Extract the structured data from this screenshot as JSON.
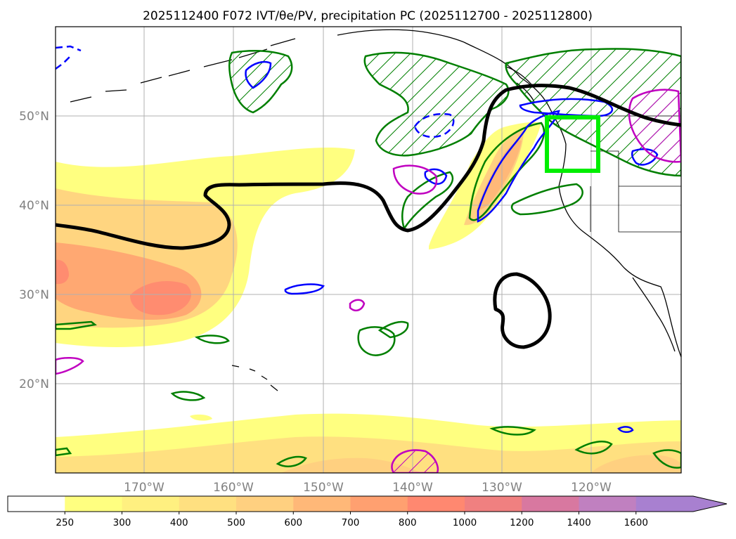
{
  "title": "2025112400 F072 IVT/θe/PV, precipitation PC (2025112700 - 2025112800)",
  "map": {
    "lon_range": [
      -180,
      -110
    ],
    "lat_range": [
      10,
      60
    ],
    "lon_ticks": [
      {
        "value": -170,
        "label": "170°W"
      },
      {
        "value": -160,
        "label": "160°W"
      },
      {
        "value": -150,
        "label": "150°W"
      },
      {
        "value": -140,
        "label": "140°W"
      },
      {
        "value": -130,
        "label": "130°W"
      },
      {
        "value": -120,
        "label": "120°W"
      }
    ],
    "lat_ticks": [
      {
        "value": 20,
        "label": "20°N"
      },
      {
        "value": 30,
        "label": "30°N"
      },
      {
        "value": 40,
        "label": "40°N"
      },
      {
        "value": 50,
        "label": "50°N"
      }
    ],
    "gridlines": true,
    "highlight_box": {
      "lon": [
        -125,
        -119
      ],
      "lat": [
        43.5,
        49.5
      ],
      "color": "#00ee00"
    }
  },
  "colorbar": {
    "levels": [
      "250",
      "300",
      "400",
      "500",
      "600",
      "700",
      "800",
      "1000",
      "1200",
      "1400",
      "1600"
    ],
    "colors": [
      "#ffffff",
      "#ffff80",
      "#fff080",
      "#ffe080",
      "#ffd080",
      "#ffb878",
      "#ffa070",
      "#ff8870",
      "#f08080",
      "#d878a0",
      "#c080c0",
      "#a880d0"
    ],
    "extend": "max"
  },
  "colors": {
    "theta_e": "#007f00",
    "pv": "#0000ff",
    "pv_neg": "#c000c0",
    "ivt_line": "#000000",
    "coast": "#000000"
  }
}
